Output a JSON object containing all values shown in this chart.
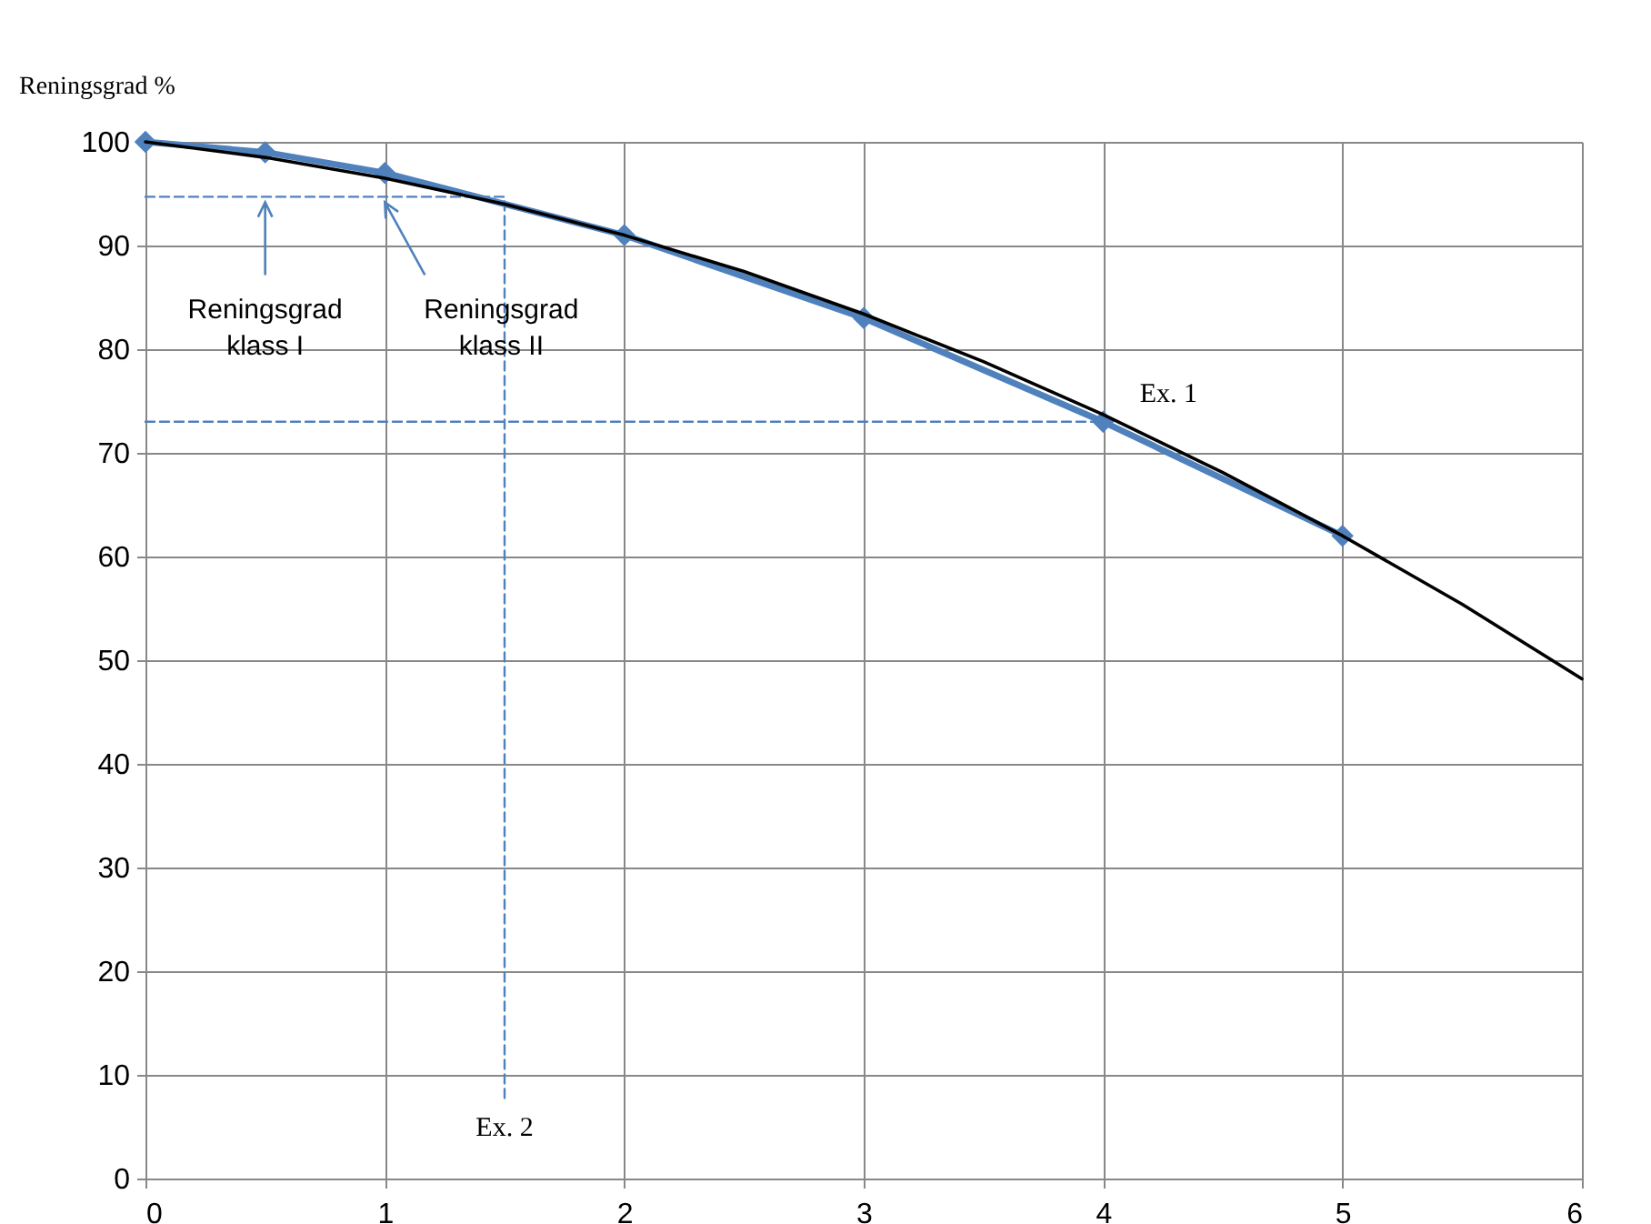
{
  "chart_data": {
    "type": "line",
    "ylabel": "Reningsgrad %",
    "xlim": [
      0,
      6
    ],
    "xticks": [
      0,
      1,
      2,
      3,
      4,
      5,
      6
    ],
    "ylim": [
      0,
      100
    ],
    "yticks": [
      0,
      10,
      20,
      30,
      40,
      50,
      60,
      70,
      80,
      90,
      100
    ],
    "grid": true,
    "series": [
      {
        "x": [
          0,
          1.5,
          1.5
        ],
        "values": [
          94.7,
          94.7,
          7.5
        ],
        "color": "#4f81bd",
        "line_style": "dashed"
      },
      {
        "x": [
          0,
          4
        ],
        "values": [
          73,
          73
        ],
        "color": "#4f81bd",
        "line_style": "dashed"
      },
      {
        "x": [
          0,
          0.5,
          1,
          2,
          3,
          4,
          5
        ],
        "values": [
          100,
          99,
          97,
          91,
          83,
          73,
          62
        ],
        "color": "#4f81bd",
        "line_style": "solid",
        "marker": "diamond"
      },
      {
        "x": [
          0,
          0.5,
          1,
          1.5,
          2,
          2.5,
          3,
          3.5,
          4,
          4.5,
          5,
          5.5,
          6
        ],
        "values": [
          100,
          98.5,
          96.5,
          94,
          91,
          87.5,
          83.4,
          78.8,
          73.7,
          68.1,
          62,
          55.4,
          48.2
        ],
        "color": "#000000",
        "line_style": "solid",
        "marker": "none"
      }
    ],
    "annotations": [
      {
        "text": "Reningsgrad\nklass I",
        "x": 0.5,
        "y": 94.7
      },
      {
        "text": "Reningsgrad\nklass II",
        "x": 1,
        "y": 94.7
      },
      {
        "text": "Ex. 1",
        "x": 4,
        "y": 73
      },
      {
        "text": "Ex. 2",
        "x": 1.5,
        "y": 7.5
      }
    ]
  }
}
